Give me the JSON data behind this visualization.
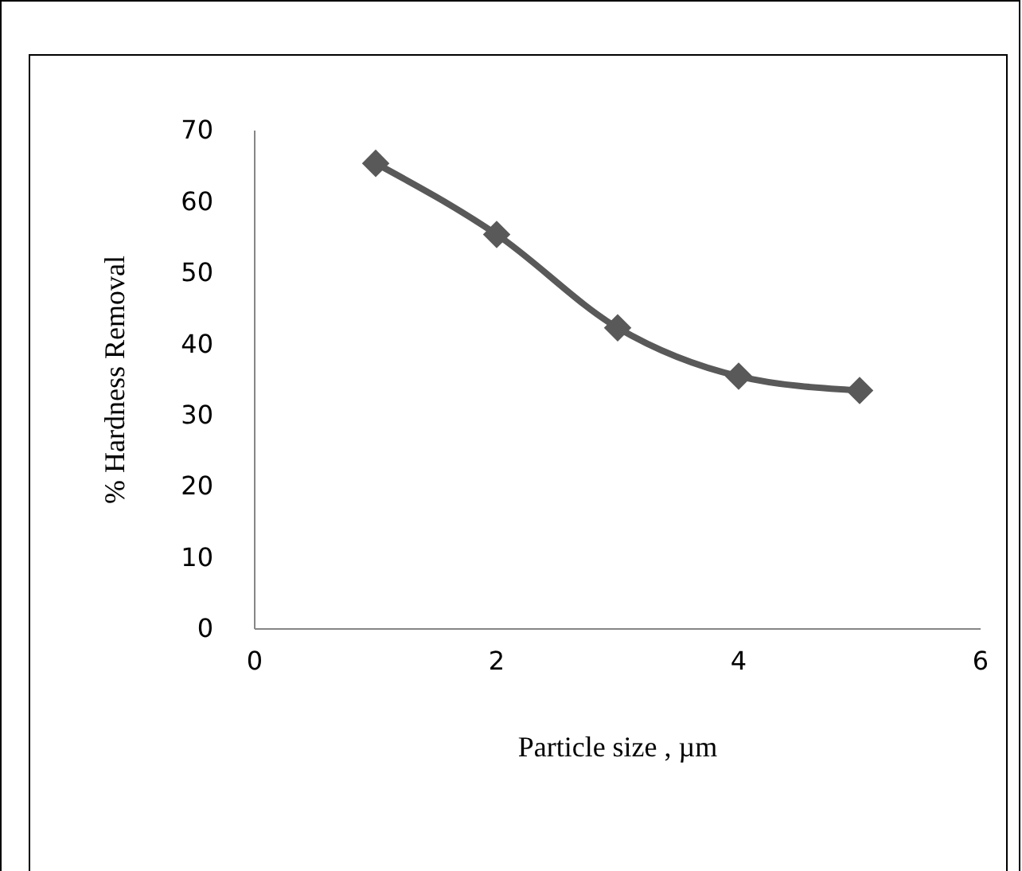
{
  "chart_data": {
    "type": "line",
    "xlabel": "Particle size , µm",
    "ylabel": "% Hardness Removal",
    "x": [
      1,
      2,
      3,
      4,
      5
    ],
    "series": [
      {
        "color": "#595959",
        "values": [
          65.4,
          55.4,
          42.3,
          35.5,
          33.5
        ]
      }
    ],
    "xlim": [
      0,
      6
    ],
    "xticks": [
      0,
      2,
      4,
      6
    ],
    "ylim": [
      0,
      70
    ],
    "yticks": [
      0,
      10,
      20,
      30,
      40,
      50,
      60,
      70
    ],
    "grid": false,
    "marker": "diamond",
    "line_style": "solid"
  }
}
